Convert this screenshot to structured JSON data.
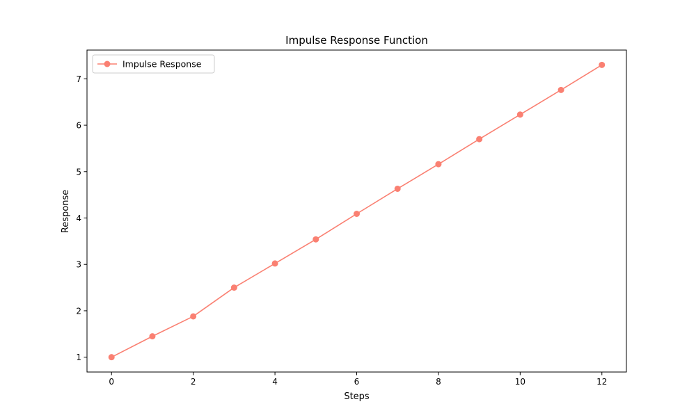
{
  "chart_data": {
    "type": "line",
    "title": "Impulse Response Function",
    "xlabel": "Steps",
    "ylabel": "Response",
    "xlim": [
      -0.6,
      12.6
    ],
    "ylim": [
      0.68,
      7.62
    ],
    "x_ticks": [
      0,
      2,
      4,
      6,
      8,
      10,
      12
    ],
    "y_ticks": [
      1,
      2,
      3,
      4,
      5,
      6,
      7
    ],
    "grid": false,
    "legend_position": "upper-left",
    "series": [
      {
        "name": "Impulse Response",
        "color": "#fa8072",
        "marker": "circle",
        "x": [
          0,
          1,
          2,
          3,
          4,
          5,
          6,
          7,
          8,
          9,
          10,
          11,
          12
        ],
        "y": [
          1.0,
          1.45,
          1.88,
          2.5,
          3.02,
          3.54,
          4.09,
          4.63,
          5.16,
          5.7,
          6.23,
          6.76,
          7.3
        ]
      }
    ]
  }
}
